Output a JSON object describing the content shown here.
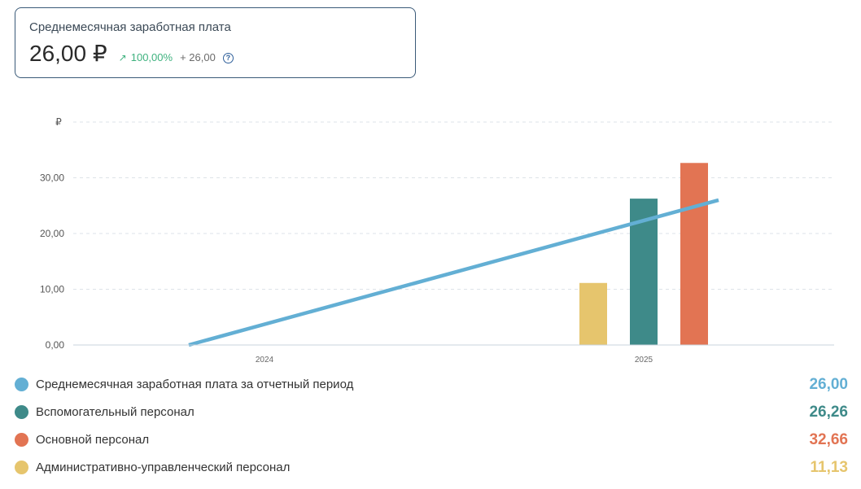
{
  "kpi": {
    "title": "Среднемесячная заработная плата",
    "value": "26,00 ₽",
    "arrow_icon": "arrow-up-right-icon",
    "change_pct": "100,00%",
    "change_abs": "+ 26,00",
    "help_icon": "question-circle-icon",
    "positive_color": "#3fb27f"
  },
  "chart_data": {
    "type": "bar",
    "ylabel": "₽",
    "ylim": [
      0,
      40
    ],
    "yticks": [
      0,
      10,
      20,
      30
    ],
    "ytick_labels": [
      "0,00",
      "10,00",
      "20,00",
      "30,00"
    ],
    "categories": [
      "2024",
      "2025"
    ],
    "line": {
      "name": "Среднемесячная заработная плата за отчетный период",
      "color": "#63afd4",
      "values": [
        0,
        26.0
      ]
    },
    "series": [
      {
        "name": "Административно-управленческий персонал",
        "color": "#e6c56d",
        "values": [
          null,
          11.13
        ]
      },
      {
        "name": "Вспомогательный персонал",
        "color": "#3e8a89",
        "values": [
          null,
          26.26
        ]
      },
      {
        "name": "Основной персонал",
        "color": "#e27453",
        "values": [
          null,
          32.66
        ]
      }
    ],
    "grid": true
  },
  "legend": [
    {
      "label": "Среднемесячная заработная плата за отчетный период",
      "value": "26,00",
      "color": "#63afd4"
    },
    {
      "label": "Вспомогательный персонал",
      "value": "26,26",
      "color": "#3e8a89"
    },
    {
      "label": "Основной персонал",
      "value": "32,66",
      "color": "#e27453"
    },
    {
      "label": "Административно-управленческий персонал",
      "value": "11,13",
      "color": "#e6c56d"
    }
  ]
}
